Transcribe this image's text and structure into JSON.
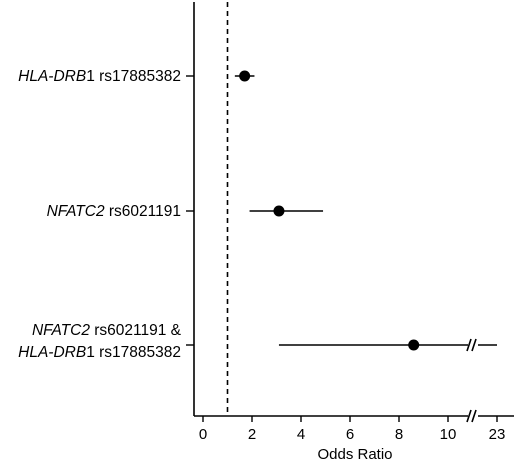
{
  "chart_data": {
    "type": "forest",
    "title": "",
    "xlabel": "Odds Ratio",
    "ylabel": "",
    "reference_line": 1,
    "x_ticks": [
      "0",
      "2",
      "4",
      "6",
      "8",
      "10",
      "23"
    ],
    "axis_break_before": "23",
    "rows": [
      {
        "label_lines": [
          [
            {
              "text": "HLA-DRB",
              "italic": true
            },
            {
              "text": "1 rs17885382",
              "italic": false
            }
          ]
        ],
        "or": 1.7,
        "ci_low": 1.3,
        "ci_high": 2.1,
        "ci_high_broken": false
      },
      {
        "label_lines": [
          [
            {
              "text": "NFATC2",
              "italic": true
            },
            {
              "text": " rs6021191",
              "italic": false
            }
          ]
        ],
        "or": 3.1,
        "ci_low": 1.9,
        "ci_high": 4.9,
        "ci_high_broken": false
      },
      {
        "label_lines": [
          [
            {
              "text": "NFATC2",
              "italic": true
            },
            {
              "text": " rs6021191 &",
              "italic": false
            }
          ],
          [
            {
              "text": "HLA-DRB",
              "italic": true
            },
            {
              "text": "1 rs17885382",
              "italic": false
            }
          ]
        ],
        "or": 8.6,
        "ci_low": 3.1,
        "ci_high": 23,
        "ci_high_broken": true
      }
    ]
  }
}
